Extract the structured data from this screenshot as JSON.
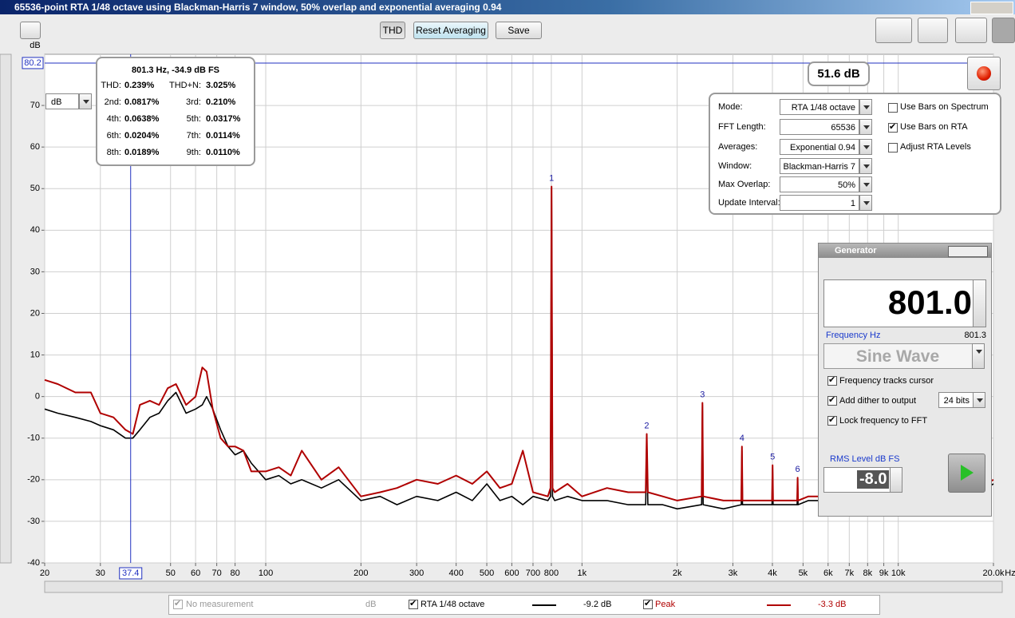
{
  "window": {
    "title": "65536-point RTA 1/48 octave using Blackman-Harris 7 window, 50% overlap and exponential averaging 0.94"
  },
  "toolbar": {
    "thd": "THD",
    "reset": "Reset Averaging",
    "save": "Save"
  },
  "level_readout": "51.6 dB",
  "unit_selector": {
    "value": "dB"
  },
  "thd_panel": {
    "title": "801.3 Hz, -34.9 dB FS",
    "rows": [
      [
        "THD:",
        "0.239%",
        "THD+N:",
        "3.025%"
      ],
      [
        "2nd:",
        "0.0817%",
        "3rd:",
        "0.210%"
      ],
      [
        "4th:",
        "0.0638%",
        "5th:",
        "0.0317%"
      ],
      [
        "6th:",
        "0.0204%",
        "7th:",
        "0.0114%"
      ],
      [
        "8th:",
        "0.0189%",
        "9th:",
        "0.0110%"
      ]
    ]
  },
  "settings": {
    "fields": [
      {
        "label": "Mode:",
        "value": "RTA 1/48 octave"
      },
      {
        "label": "FFT Length:",
        "value": "65536"
      },
      {
        "label": "Averages:",
        "value": "Exponential 0.94"
      },
      {
        "label": "Window:",
        "value": "Blackman-Harris 7"
      },
      {
        "label": "Max Overlap:",
        "value": "50%"
      },
      {
        "label": "Update Interval:",
        "value": "1"
      }
    ],
    "options": [
      {
        "label": "Use Bars on Spectrum",
        "checked": false
      },
      {
        "label": "Use Bars on RTA",
        "checked": true
      },
      {
        "label": "Adjust RTA Levels",
        "checked": false
      }
    ]
  },
  "generator": {
    "title": "Generator",
    "frequency": "801.0",
    "frequency_label": "Frequency Hz",
    "cursor_frequency": "801.3",
    "signal": "Sine Wave",
    "options": [
      {
        "label": "Frequency tracks cursor",
        "checked": true
      },
      {
        "label": "Add dither to output",
        "checked": true
      },
      {
        "label": "Lock frequency to FFT",
        "checked": true
      }
    ],
    "dither_bits": "24 bits",
    "level_label": "RMS Level dB FS",
    "level": "-8.0"
  },
  "legend": {
    "empty_label": "No measurement",
    "empty_unit": "dB"
  },
  "chart_data": {
    "type": "line",
    "x_label": "Hz",
    "y_label": "dB",
    "xscale": "log",
    "grid": true,
    "xlim": [
      20,
      20000
    ],
    "ylim": [
      -40,
      82.3
    ],
    "xticks": [
      20,
      30,
      50,
      60,
      70,
      80,
      100,
      200,
      300,
      400,
      500,
      600,
      700,
      800,
      {
        "value": 1000,
        "label": "1k"
      },
      {
        "value": 2000,
        "label": "2k"
      },
      {
        "value": 3000,
        "label": "3k"
      },
      {
        "value": 4000,
        "label": "4k"
      },
      {
        "value": 5000,
        "label": "5k"
      },
      {
        "value": 6000,
        "label": "6k"
      },
      {
        "value": 7000,
        "label": "7k"
      },
      {
        "value": 8000,
        "label": "8k"
      },
      {
        "value": 9000,
        "label": "9k"
      },
      {
        "value": 10000,
        "label": "10k"
      },
      {
        "value": 20000,
        "label": "20.0k"
      }
    ],
    "yticks": [
      -40,
      -30,
      -20,
      -10,
      0,
      10,
      20,
      30,
      40,
      50,
      60,
      70
    ],
    "cursor": {
      "x": 37.4,
      "y": 80.2
    },
    "x": [
      20,
      22,
      25,
      28,
      30,
      33,
      36,
      38,
      40,
      43,
      46,
      49,
      52,
      56,
      60,
      63,
      65,
      68,
      72,
      76,
      80,
      85,
      90,
      100,
      110,
      120,
      130,
      150,
      170,
      200,
      230,
      260,
      300,
      350,
      400,
      450,
      500,
      550,
      600,
      650,
      700,
      780,
      795,
      801,
      807,
      820,
      900,
      1000,
      1200,
      1400,
      1590,
      1602,
      1615,
      1800,
      2000,
      2390,
      2403,
      2416,
      2800,
      3190,
      3204,
      3218,
      3600,
      3990,
      4005,
      4020,
      4400,
      4790,
      4806,
      4822,
      5200,
      8000,
      12000,
      19000,
      20000
    ],
    "series": [
      {
        "name": "RTA 1/48 octave",
        "color": "#000000",
        "readout": "-9.2 dB",
        "values": [
          -3,
          -4,
          -5,
          -6,
          -7,
          -8,
          -10,
          -10,
          -8,
          -5,
          -4,
          -1,
          1,
          -4,
          -3,
          -2,
          0,
          -3,
          -8,
          -12,
          -14,
          -13,
          -16,
          -20,
          -19,
          -21,
          -20,
          -22,
          -20,
          -25,
          -24,
          -26,
          -24,
          -25,
          -23,
          -25,
          -21,
          -25,
          -24,
          -26,
          -24,
          -25,
          -24,
          50,
          -24,
          -25,
          -24,
          -25,
          -25,
          -26,
          -26,
          -10,
          -26,
          -26,
          -27,
          -26,
          -2,
          -26,
          -27,
          -26,
          -13,
          -26,
          -26,
          -26,
          -17,
          -26,
          -26,
          -26,
          -20,
          -26,
          -25,
          -25,
          -24,
          -22,
          -21
        ]
      },
      {
        "name": "Peak",
        "color": "#b00000",
        "readout": "-3.3 dB",
        "values": [
          4,
          3,
          1,
          1,
          -4,
          -5,
          -8,
          -9,
          -2,
          -1,
          -2,
          2,
          3,
          -2,
          0,
          7,
          6,
          -3,
          -10,
          -12,
          -12,
          -13,
          -18,
          -18,
          -17,
          -19,
          -13,
          -20,
          -17,
          -24,
          -23,
          -22,
          -20,
          -21,
          -19,
          -21,
          -18,
          -22,
          -21,
          -13,
          -23,
          -24,
          -22,
          50.5,
          -22,
          -23,
          -21,
          -24,
          -22,
          -23,
          -23,
          -9,
          -23,
          -24,
          -25,
          -24,
          -1.5,
          -24,
          -25,
          -25,
          -12,
          -25,
          -25,
          -25,
          -16.5,
          -25,
          -25,
          -25,
          -19.5,
          -25,
          -24,
          -24,
          -23,
          -21,
          -20
        ]
      }
    ],
    "harmonics": {
      "labels": [
        "1",
        "2",
        "3",
        "4",
        "5",
        "6"
      ],
      "x": [
        801,
        1602,
        2403,
        3204,
        4005,
        4806
      ]
    }
  }
}
